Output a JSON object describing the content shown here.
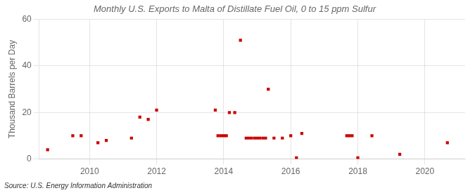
{
  "chart_data": {
    "type": "scatter",
    "title": "Monthly U.S. Exports to Malta of Distillate Fuel Oil, 0 to 15 ppm Sulfur",
    "ylabel": "Thousand Barrels per Day",
    "annotations": [
      "Source: U.S. Energy Information Administration"
    ],
    "color": "#cc0000",
    "marker": "square",
    "grid": true,
    "xlim": [
      2008.5,
      2021.2
    ],
    "ylim": [
      0,
      60
    ],
    "xticks": [
      2010,
      2012,
      2014,
      2016,
      2018,
      2020
    ],
    "yticks": [
      0,
      20,
      40,
      60
    ],
    "x": [
      2008.75,
      2009.5,
      2009.75,
      2010.25,
      2010.5,
      2011.25,
      2011.5,
      2011.75,
      2012.0,
      2013.75,
      2013.83,
      2013.92,
      2014.0,
      2014.08,
      2014.17,
      2014.33,
      2014.5,
      2014.67,
      2014.75,
      2014.83,
      2014.92,
      2015.0,
      2015.08,
      2015.17,
      2015.25,
      2015.33,
      2015.5,
      2015.75,
      2016.0,
      2016.17,
      2016.33,
      2017.67,
      2017.75,
      2017.83,
      2018.0,
      2018.42,
      2019.25,
      2020.67
    ],
    "values": [
      4,
      10,
      10,
      7,
      8,
      9,
      18,
      17,
      21,
      21,
      10,
      10,
      10,
      10,
      20,
      20,
      51,
      9,
      9,
      9,
      9,
      9,
      9,
      9,
      9,
      30,
      9,
      9,
      10,
      0.5,
      11,
      10,
      10,
      10,
      0.5,
      10,
      2,
      7
    ]
  }
}
